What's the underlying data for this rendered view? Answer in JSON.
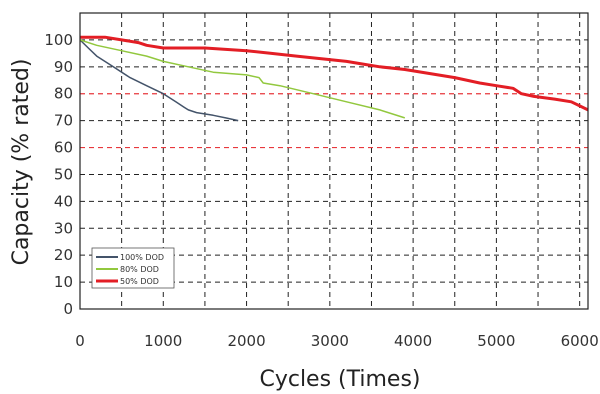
{
  "chart_data": {
    "type": "line",
    "xlabel": "Cycles (Times)",
    "ylabel": "Capacity (% rated)",
    "xlim": [
      0,
      6100
    ],
    "ylim": [
      0,
      110
    ],
    "xticks": [
      0,
      1000,
      2000,
      3000,
      4000,
      5000,
      6000
    ],
    "yticks": [
      0,
      10,
      20,
      30,
      40,
      50,
      60,
      70,
      80,
      90,
      100
    ],
    "grid": "dashed",
    "legend_position": "bottom-left",
    "reference_lines": [
      {
        "y": 80,
        "color": "#e8383d"
      },
      {
        "y": 60,
        "color": "#e8383d"
      }
    ],
    "series": [
      {
        "name": "100% DOD",
        "color": "#44546a",
        "x": [
          0,
          100,
          200,
          400,
          600,
          800,
          1000,
          1150,
          1250,
          1300,
          1400,
          1600,
          1750,
          1900
        ],
        "y": [
          100,
          97,
          94,
          90,
          86,
          83,
          80,
          77,
          75,
          74,
          73,
          72,
          71,
          70
        ]
      },
      {
        "name": "80% DOD",
        "color": "#92c83e",
        "x": [
          0,
          200,
          500,
          800,
          1000,
          1300,
          1600,
          2000,
          2150,
          2200,
          2400,
          2800,
          3200,
          3600,
          3900
        ],
        "y": [
          100,
          98,
          96,
          94,
          92,
          90,
          88,
          87,
          86,
          84,
          83,
          80,
          77,
          74,
          71
        ]
      },
      {
        "name": "50% DOD",
        "color": "#e31e25",
        "x": [
          0,
          300,
          500,
          700,
          800,
          1000,
          1500,
          2000,
          2300,
          2600,
          2900,
          3200,
          3400,
          3600,
          3900,
          4500,
          4800,
          5000,
          5200,
          5300,
          5450,
          5700,
          5900,
          6100
        ],
        "y": [
          101,
          101,
          100,
          99,
          98,
          97,
          97,
          96,
          95,
          94,
          93,
          92,
          91,
          90,
          89,
          86,
          84,
          83,
          82,
          80,
          79,
          78,
          77,
          74
        ]
      }
    ]
  }
}
